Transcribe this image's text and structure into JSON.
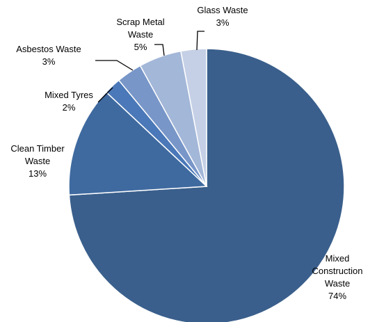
{
  "chart_data": {
    "type": "pie",
    "title": "",
    "slices": [
      {
        "label_lines": [
          "Mixed",
          "Construction",
          "Waste"
        ],
        "percent_label": "74%",
        "value": 74,
        "color": "#3A5F8C"
      },
      {
        "label_lines": [
          "Clean Timber",
          "Waste"
        ],
        "percent_label": "13%",
        "value": 13,
        "color": "#3F6AA0"
      },
      {
        "label_lines": [
          "Mixed Tyres"
        ],
        "percent_label": "2%",
        "value": 2,
        "color": "#4A78B8"
      },
      {
        "label_lines": [
          "Asbestos Waste"
        ],
        "percent_label": "3%",
        "value": 3,
        "color": "#7896C8"
      },
      {
        "label_lines": [
          "Scrap Metal",
          "Waste"
        ],
        "percent_label": "5%",
        "value": 5,
        "color": "#A3B7D8"
      },
      {
        "label_lines": [
          "Glass Waste"
        ],
        "percent_label": "3%",
        "value": 3,
        "color": "#C5D0E6"
      }
    ],
    "start_angle_deg": 0,
    "direction": "clockwise",
    "legend": "none"
  }
}
